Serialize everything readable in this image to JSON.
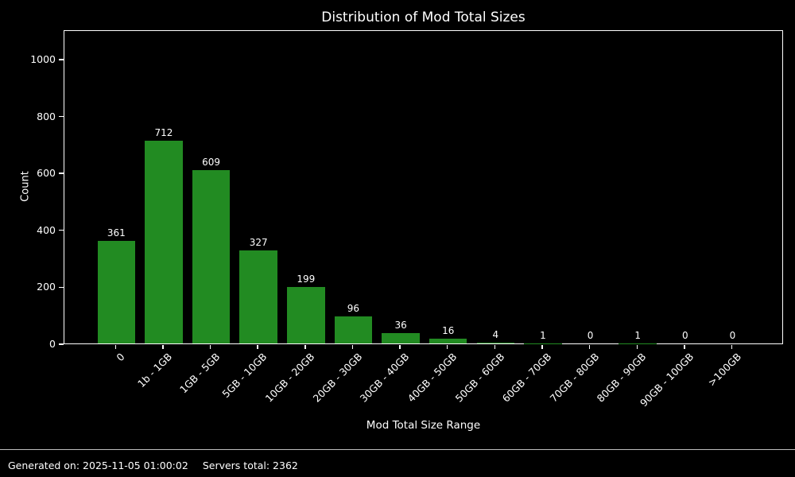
{
  "title": "Distribution of Mod Total Sizes",
  "chart_data": {
    "type": "bar",
    "title": "Distribution of Mod Total Sizes",
    "xlabel": "Mod Total Size Range",
    "ylabel": "Count",
    "categories": [
      "0",
      "1b - 1GB",
      "1GB - 5GB",
      "5GB - 10GB",
      "10GB - 20GB",
      "20GB - 30GB",
      "30GB - 40GB",
      "40GB - 50GB",
      "50GB - 60GB",
      "60GB - 70GB",
      "70GB - 80GB",
      "80GB - 90GB",
      "90GB - 100GB",
      ">100GB"
    ],
    "values": [
      361,
      712,
      609,
      327,
      199,
      96,
      36,
      16,
      4,
      1,
      0,
      1,
      0,
      0
    ],
    "yticks": [
      0,
      200,
      400,
      600,
      800,
      1000
    ],
    "ylim": [
      0,
      1103
    ],
    "grid": false,
    "legend": null,
    "bar_color": "#228B22",
    "background_color": "#000000",
    "text_color": "#ffffff"
  },
  "footer": {
    "generated_on": "Generated on: 2025-11-05 01:00:02",
    "servers_total": "Servers total: 2362"
  }
}
